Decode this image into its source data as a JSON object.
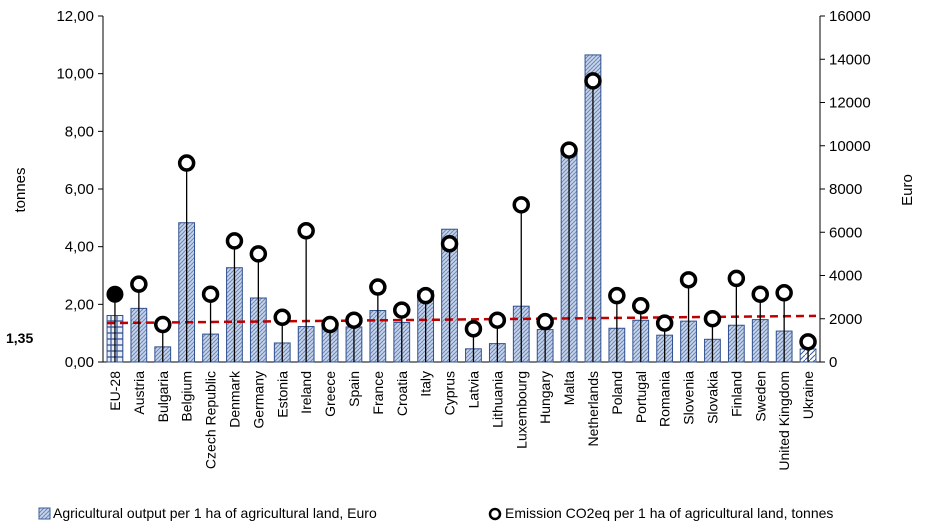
{
  "chart_data": {
    "type": "bar",
    "categories": [
      "EU-28",
      "Austria",
      "Bulgaria",
      "Belgium",
      "Czech Republic",
      "Denmark",
      "Germany",
      "Estonia",
      "Ireland",
      "Greece",
      "Spain",
      "France",
      "Croatia",
      "Italy",
      "Cyprus",
      "Latvia",
      "Lithuania",
      "Luxembourg",
      "Hungary",
      "Malta",
      "Netherlands",
      "Poland",
      "Portugal",
      "Romania",
      "Slovenia",
      "Slovakia",
      "Finland",
      "Sweden",
      "United Kingdom",
      "Ukraine"
    ],
    "series": [
      {
        "name": "Agricultural output per 1 ha of agricultural land, Euro",
        "type": "bar",
        "axis": "right",
        "color": "#b8c7e0",
        "values": [
          2150,
          2480,
          700,
          6440,
          1290,
          4360,
          2960,
          880,
          1640,
          1620,
          1620,
          2380,
          1830,
          3300,
          6140,
          610,
          850,
          2580,
          1500,
          9800,
          14200,
          1560,
          1930,
          1240,
          1890,
          1050,
          1700,
          1960,
          1430,
          600
        ]
      },
      {
        "name": "Emission CO2eq per 1 ha of agricultural land, tonnes",
        "type": "scatter",
        "axis": "left",
        "values": [
          2.35,
          2.7,
          1.3,
          6.9,
          2.35,
          4.2,
          3.75,
          1.55,
          4.55,
          1.3,
          1.45,
          2.6,
          1.8,
          2.3,
          4.1,
          1.15,
          1.45,
          5.45,
          1.4,
          7.35,
          9.75,
          2.3,
          1.95,
          1.35,
          2.85,
          1.5,
          2.9,
          2.35,
          2.4,
          0.7
        ]
      }
    ],
    "trendline": {
      "axis": "left",
      "start": 1.35,
      "end": 1.6,
      "color": "#c00000"
    },
    "annotation": {
      "label": "1,35",
      "value": 1.35
    },
    "y_left": {
      "label": "tonnes",
      "ylim": [
        0,
        12
      ],
      "ticks": [
        "0,00",
        "2,00",
        "4,00",
        "6,00",
        "8,00",
        "10,00",
        "12,00"
      ]
    },
    "y_right": {
      "label": "Euro",
      "ylim": [
        0,
        16000
      ],
      "ticks": [
        "0",
        "2000",
        "4000",
        "6000",
        "8000",
        "10000",
        "12000",
        "14000",
        "16000"
      ]
    },
    "legend": {
      "placement": "bottom",
      "items": [
        {
          "label": "Agricultural output per 1 ha of agricultural land, Euro",
          "marker": "hatched-square"
        },
        {
          "label": "Emission CO2eq per 1 ha of agricultural land, tonnes",
          "marker": "open-circle"
        }
      ]
    },
    "grid": false
  }
}
